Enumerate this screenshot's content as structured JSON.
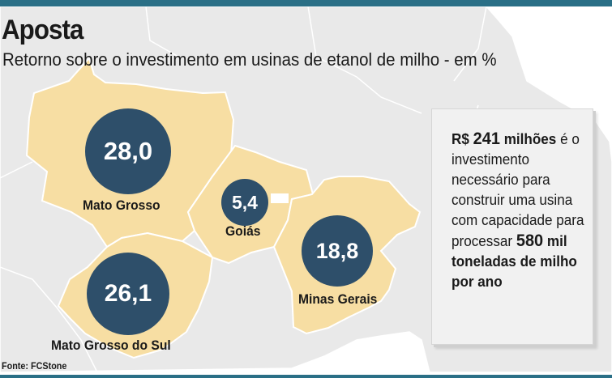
{
  "header": {
    "title": "Aposta",
    "subtitle": "Retorno sobre o investimento em usinas de etanol de milho - em %"
  },
  "map": {
    "states": [
      {
        "name": "Mato Grosso",
        "value": "28,0"
      },
      {
        "name": "Goiás",
        "value": "5,4"
      },
      {
        "name": "Minas Gerais",
        "value": "18,8"
      },
      {
        "name": "Mato Grosso do Sul",
        "value": "26,1"
      }
    ]
  },
  "info": {
    "currency": "R$",
    "amount": "241",
    "unit": "milhões",
    "text_1": "é o investimento necessário para construir uma usina com capacidade para processar",
    "amount_2": "580",
    "text_2": "mil toneladas de milho por ano"
  },
  "source": "Fonte: FCStone",
  "colors": {
    "accent_bar": "#2a6f86",
    "bubble": "#2e4f6a",
    "highlighted_state": "#f7dea3",
    "other_land": "#e9e9e9",
    "ocean": "#ffffff"
  }
}
